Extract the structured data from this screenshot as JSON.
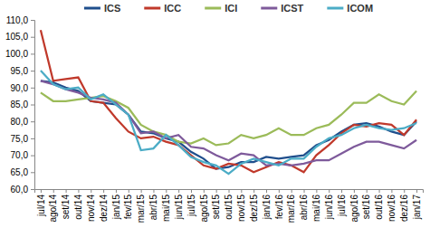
{
  "chart_data": {
    "type": "line",
    "categories": [
      "jul/14",
      "ago/14",
      "set/14",
      "out/14",
      "nov/14",
      "dez/14",
      "jan/15",
      "fev/15",
      "mar/15",
      "abr/15",
      "mai/15",
      "jun/15",
      "jul/15",
      "ago/15",
      "set/15",
      "out/15",
      "nov/15",
      "dez/15",
      "jan/16",
      "fev/16",
      "mar/16",
      "abr/16",
      "mai/16",
      "jun/16",
      "jul/16",
      "ago/16",
      "set/16",
      "out/16",
      "nov/16",
      "dez/16",
      "jan/17"
    ],
    "series": [
      {
        "name": "ICS",
        "color": "#1f4e8c",
        "values": [
          92,
          91.5,
          90,
          89,
          86,
          85.5,
          85,
          82,
          77,
          76.5,
          75,
          74,
          71,
          69,
          66,
          66.5,
          68,
          68,
          69.5,
          69,
          69.5,
          70,
          73,
          74.5,
          77,
          79,
          79.5,
          78.5,
          77,
          76,
          80
        ]
      },
      {
        "name": "ICC",
        "color": "#c0392b",
        "values": [
          107,
          92,
          92.5,
          93,
          86,
          85.5,
          81,
          77,
          75,
          75.5,
          74,
          73,
          70,
          67,
          66,
          67.5,
          67,
          65,
          66.5,
          68,
          67,
          65,
          70,
          73,
          76.5,
          79,
          78.5,
          79.5,
          79,
          76,
          80.5
        ]
      },
      {
        "name": "ICI",
        "color": "#9bbb59",
        "values": [
          88.5,
          86,
          86,
          86.5,
          87,
          87.5,
          86,
          84,
          79,
          77,
          76,
          74,
          73.5,
          75,
          73,
          73.5,
          76,
          75,
          76,
          78,
          76,
          76,
          78,
          79,
          82,
          85.5,
          85.5,
          88,
          86,
          85,
          89
        ]
      },
      {
        "name": "ICST",
        "color": "#7e5a9b",
        "values": [
          92,
          91,
          89.5,
          88.5,
          87,
          86.5,
          85.5,
          82,
          76.5,
          77,
          75,
          76,
          72.5,
          72,
          70,
          68.5,
          70.5,
          70,
          67,
          67.5,
          67,
          67.5,
          68.5,
          68.5,
          70.5,
          72.5,
          74,
          74,
          73,
          72,
          74.5
        ]
      },
      {
        "name": "ICOM",
        "color": "#4bacc6",
        "values": [
          95,
          91,
          89.5,
          90,
          86.5,
          88,
          85,
          82,
          71.5,
          72,
          76,
          73,
          69.5,
          68,
          67,
          64.5,
          67.5,
          69,
          68,
          67,
          69,
          69,
          72.5,
          75,
          76,
          78,
          79,
          78,
          77.5,
          78,
          79.5
        ]
      }
    ],
    "ylim": [
      60,
      110
    ],
    "yticks": [
      {
        "value": 60,
        "label": "60,0"
      },
      {
        "value": 65,
        "label": "65,0"
      },
      {
        "value": 70,
        "label": "70,0"
      },
      {
        "value": 75,
        "label": "75,0"
      },
      {
        "value": 80,
        "label": "80,0"
      },
      {
        "value": 85,
        "label": "85,0"
      },
      {
        "value": 90,
        "label": "90,0"
      },
      {
        "value": 95,
        "label": "95,0"
      },
      {
        "value": 100,
        "label": "100,0"
      },
      {
        "value": 105,
        "label": "105,0"
      },
      {
        "value": 110,
        "label": "110,0"
      }
    ],
    "grid": false,
    "legend": "top"
  }
}
